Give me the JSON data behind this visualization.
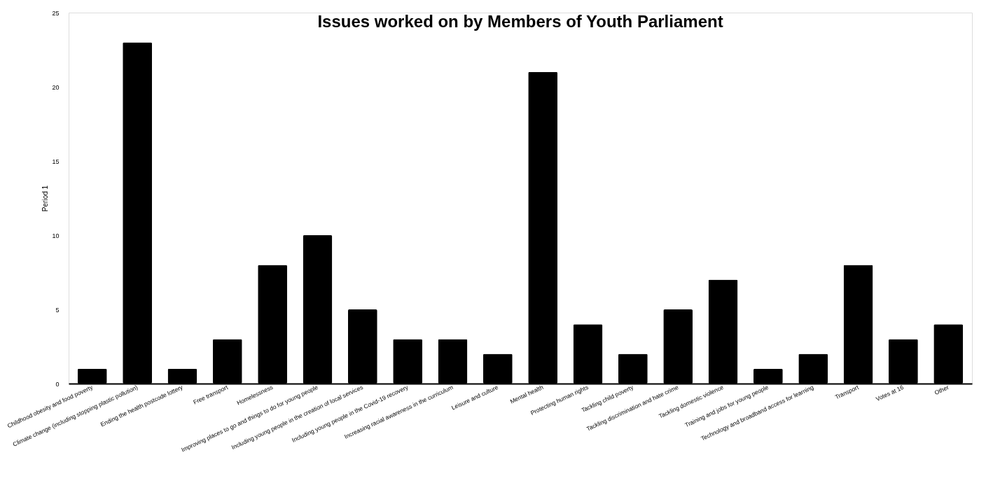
{
  "chart_data": {
    "type": "bar",
    "title": "Issues worked on by Members of Youth Parliament",
    "ylabel": "Period 1",
    "categories": [
      "Childhood obesity and food poverty",
      "Climate change (including stopping plastic pollution)",
      "Ending the health postcode lottery",
      "Free transport",
      "Homelessness",
      "Improving places to go and things to do for young people",
      "Including young people in the creation of local services",
      "Including young people in the Covid-19 recovery",
      "Increasing racial awareness in the curriculum",
      "Leisure and culture",
      "Mental health",
      "Protecting human rights",
      "Tackling child poverty",
      "Tackling discrimination and hate crime",
      "Tackling domestic violence",
      "Training and jobs for young people",
      "Technology and broadband access for learning",
      "Transport",
      "Votes at 16",
      "Other"
    ],
    "values": [
      1,
      23,
      1,
      3,
      8,
      10,
      5,
      3,
      3,
      2,
      21,
      4,
      2,
      5,
      7,
      1,
      2,
      8,
      3,
      4
    ],
    "color": "#000000",
    "ylim": [
      0,
      25
    ],
    "yticks": [
      0,
      5,
      10,
      15,
      20,
      25
    ],
    "grid": false
  }
}
